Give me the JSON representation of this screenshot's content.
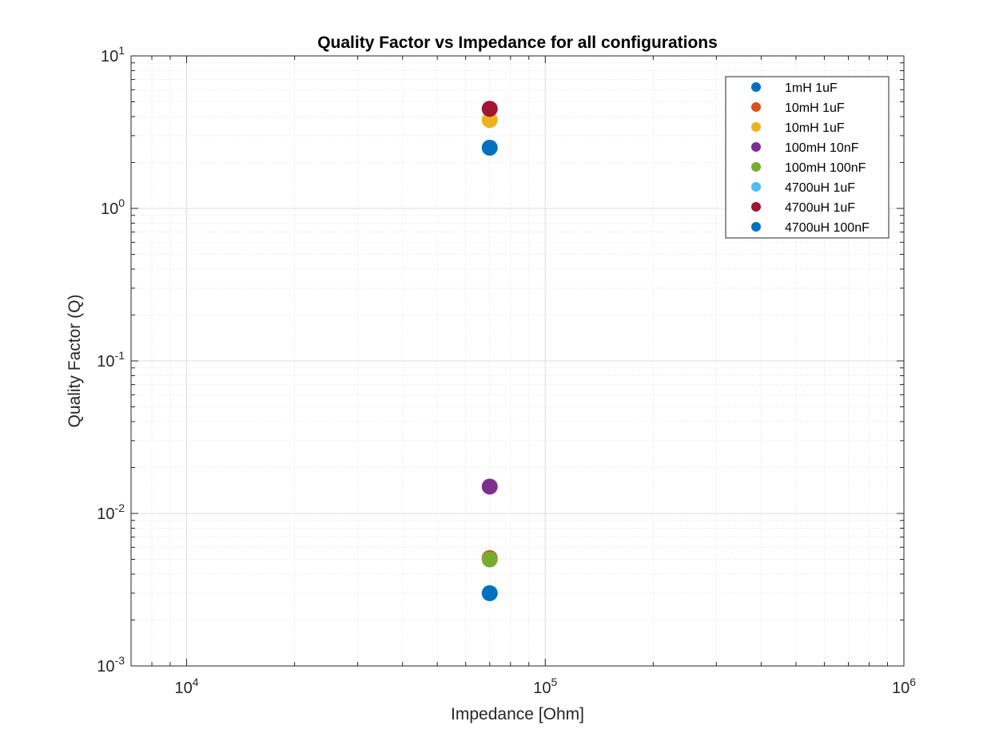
{
  "chart_data": {
    "type": "scatter",
    "title": "Quality Factor vs Impedance for all configurations",
    "xlabel": "Impedance [Ohm]",
    "ylabel": "Quality Factor (Q)",
    "xscale": "log",
    "yscale": "log",
    "xlim": [
      7000,
      1000000
    ],
    "ylim": [
      0.001,
      10
    ],
    "grid": true,
    "minor_grid": true,
    "legend_position": "top-right",
    "x_ticks": [
      {
        "base": "10",
        "exp": "4",
        "value": 10000
      },
      {
        "base": "10",
        "exp": "5",
        "value": 100000
      },
      {
        "base": "10",
        "exp": "6",
        "value": 1000000
      }
    ],
    "y_ticks": [
      {
        "base": "10",
        "exp": "-3",
        "value": 0.001
      },
      {
        "base": "10",
        "exp": "-2",
        "value": 0.01
      },
      {
        "base": "10",
        "exp": "-1",
        "value": 0.1
      },
      {
        "base": "10",
        "exp": "0",
        "value": 1
      },
      {
        "base": "10",
        "exp": "1",
        "value": 10
      }
    ],
    "series": [
      {
        "name": "1mH 1uF",
        "color": "#0072BD",
        "x": [
          70000
        ],
        "y": [
          0.003
        ]
      },
      {
        "name": "10mH 1uF",
        "color": "#D95319",
        "x": [
          70000
        ],
        "y": [
          0.0051
        ]
      },
      {
        "name": "10mH 1uF",
        "color": "#EDB120",
        "x": [
          70000
        ],
        "y": [
          3.8
        ]
      },
      {
        "name": "100mH 10nF",
        "color": "#7E2F8E",
        "x": [
          70000
        ],
        "y": [
          0.015
        ]
      },
      {
        "name": "100mH 100nF",
        "color": "#77AC30",
        "x": [
          70000
        ],
        "y": [
          0.005
        ]
      },
      {
        "name": "4700uH 1uF",
        "color": "#4DBEEE",
        "x": [
          70000
        ],
        "y": [
          4.5
        ]
      },
      {
        "name": "4700uH 1uF",
        "color": "#A2142F",
        "x": [
          70000
        ],
        "y": [
          4.5
        ]
      },
      {
        "name": "4700uH 100nF",
        "color": "#0072BD",
        "x": [
          70000
        ],
        "y": [
          2.5
        ]
      }
    ]
  }
}
